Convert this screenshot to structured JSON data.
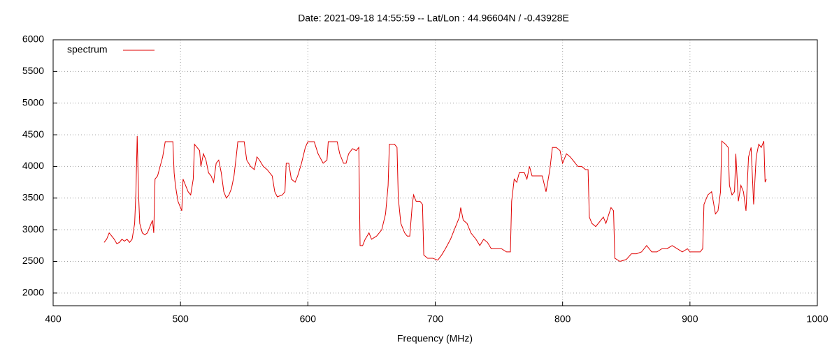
{
  "chart_data": {
    "type": "line",
    "title": "Date: 2021-09-18 14:55:59  --  Lat/Lon : 44.96604N / -0.43928E",
    "x_label": "Frequency (MHz)",
    "xlim": [
      400,
      1000
    ],
    "xticks": [
      400,
      500,
      600,
      700,
      800,
      900,
      1000
    ],
    "ylim": [
      1800,
      6000
    ],
    "yticks": [
      2000,
      2500,
      3000,
      3500,
      4000,
      4500,
      5000,
      5500,
      6000
    ],
    "grid": true,
    "legend": "upper left",
    "x": [
      440,
      442,
      444,
      446,
      448,
      450,
      452,
      454,
      456,
      458,
      460,
      462,
      464,
      465,
      466,
      467,
      468,
      470,
      472,
      474,
      476,
      478,
      479,
      480,
      482,
      484,
      486,
      488,
      490,
      492,
      494,
      495,
      496,
      498,
      500,
      501,
      502,
      504,
      506,
      508,
      510,
      511,
      513,
      515,
      516,
      518,
      520,
      522,
      524,
      526,
      528,
      530,
      532,
      534,
      536,
      538,
      540,
      542,
      544,
      545,
      550,
      552,
      555,
      558,
      560,
      562,
      565,
      568,
      572,
      574,
      576,
      580,
      582,
      583,
      585,
      587,
      590,
      592,
      595,
      598,
      600,
      605,
      608,
      612,
      615,
      616,
      620,
      623,
      625,
      628,
      630,
      632,
      635,
      638,
      640,
      641,
      643,
      645,
      648,
      650,
      654,
      658,
      661,
      663,
      664,
      668,
      670,
      671,
      673,
      676,
      678,
      680,
      682,
      683,
      685,
      688,
      690,
      691,
      694,
      698,
      702,
      705,
      708,
      712,
      716,
      719,
      720,
      722,
      725,
      728,
      732,
      735,
      738,
      741,
      744,
      748,
      752,
      756,
      759,
      760,
      762,
      764,
      766,
      770,
      772,
      774,
      776,
      780,
      784,
      787,
      790,
      792,
      795,
      798,
      800,
      803,
      806,
      808,
      812,
      815,
      818,
      820,
      821,
      823,
      826,
      830,
      832,
      834,
      838,
      840,
      841,
      845,
      850,
      854,
      858,
      862,
      866,
      870,
      874,
      878,
      882,
      886,
      890,
      894,
      898,
      900,
      904,
      908,
      910,
      911,
      914,
      917,
      920,
      922,
      924,
      925,
      928,
      930,
      931,
      933,
      935,
      936,
      938,
      940,
      942,
      944,
      946,
      948,
      950,
      952,
      954,
      956,
      958,
      959,
      960
    ],
    "series": [
      {
        "name": "spectrum",
        "color": "#e00000",
        "values": [
          2800,
          2850,
          2950,
          2900,
          2850,
          2780,
          2800,
          2850,
          2820,
          2850,
          2800,
          2850,
          3100,
          3600,
          4480,
          3600,
          3100,
          2950,
          2920,
          2950,
          3050,
          3150,
          2950,
          3800,
          3850,
          4000,
          4150,
          4390,
          4390,
          4390,
          4390,
          3900,
          3700,
          3450,
          3350,
          3300,
          3800,
          3700,
          3600,
          3550,
          3800,
          4350,
          4300,
          4250,
          4000,
          4200,
          4100,
          3900,
          3850,
          3750,
          4050,
          4100,
          3900,
          3600,
          3500,
          3550,
          3650,
          3850,
          4200,
          4390,
          4390,
          4100,
          4000,
          3950,
          4150,
          4100,
          4000,
          3950,
          3850,
          3600,
          3520,
          3550,
          3600,
          4050,
          4050,
          3800,
          3750,
          3850,
          4050,
          4300,
          4390,
          4390,
          4200,
          4050,
          4100,
          4390,
          4390,
          4390,
          4200,
          4050,
          4050,
          4200,
          4280,
          4250,
          4300,
          2750,
          2750,
          2850,
          2950,
          2850,
          2900,
          3000,
          3250,
          3700,
          4350,
          4350,
          4300,
          3500,
          3100,
          2950,
          2900,
          2900,
          3400,
          3550,
          3450,
          3450,
          3400,
          2600,
          2550,
          2550,
          2520,
          2600,
          2700,
          2850,
          3050,
          3200,
          3350,
          3150,
          3100,
          2950,
          2850,
          2750,
          2850,
          2800,
          2700,
          2700,
          2700,
          2650,
          2650,
          3450,
          3800,
          3750,
          3900,
          3900,
          3800,
          4000,
          3850,
          3850,
          3850,
          3600,
          3950,
          4300,
          4300,
          4250,
          4050,
          4200,
          4150,
          4100,
          4000,
          4000,
          3950,
          3950,
          3200,
          3100,
          3050,
          3150,
          3200,
          3100,
          3350,
          3300,
          2550,
          2500,
          2530,
          2620,
          2620,
          2650,
          2750,
          2650,
          2650,
          2700,
          2700,
          2750,
          2700,
          2650,
          2700,
          2650,
          2650,
          2650,
          2700,
          3400,
          3550,
          3600,
          3250,
          3300,
          3600,
          4400,
          4350,
          4300,
          3700,
          3550,
          3600,
          4200,
          3450,
          3700,
          3600,
          3300,
          4150,
          4300,
          3400,
          4150,
          4350,
          4300,
          4400,
          3750,
          3800
        ]
      }
    ]
  }
}
